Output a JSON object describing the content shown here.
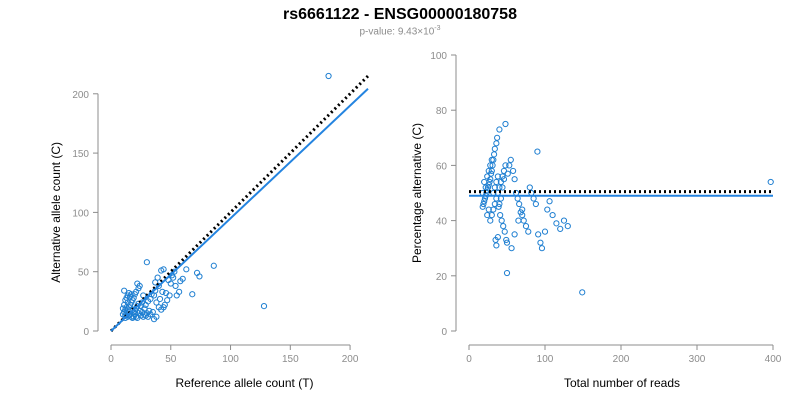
{
  "header": {
    "title": "rs6661122 - ENSG00000180758",
    "pvalue_prefix": "p-value: 9.43×10",
    "pvalue_exp": "-3"
  },
  "colors": {
    "points": "#1f7fd1",
    "fit_line": "#2484e0",
    "reference_line": "#000000",
    "axis": "#8c8c8c"
  },
  "chart_data": [
    {
      "type": "scatter",
      "xlabel": "Reference allele count (T)",
      "ylabel": "Alternative allele count (C)",
      "xlim": [
        0,
        215
      ],
      "ylim": [
        0,
        215
      ],
      "xticks": [
        0,
        50,
        100,
        150,
        200
      ],
      "yticks": [
        0,
        50,
        100,
        150,
        200
      ],
      "grid": false,
      "points": [
        [
          182,
          215
        ],
        [
          128,
          21
        ],
        [
          30,
          58
        ],
        [
          86,
          55
        ],
        [
          72,
          49
        ],
        [
          74,
          46
        ],
        [
          68,
          31
        ],
        [
          63,
          52
        ],
        [
          57,
          33
        ],
        [
          55,
          30
        ],
        [
          51,
          47
        ],
        [
          48,
          43
        ],
        [
          53,
          50
        ],
        [
          44,
          52
        ],
        [
          42,
          51
        ],
        [
          46,
          32
        ],
        [
          40,
          38
        ],
        [
          37,
          34
        ],
        [
          36,
          30
        ],
        [
          34,
          31
        ],
        [
          33,
          27
        ],
        [
          31,
          25
        ],
        [
          29,
          22
        ],
        [
          28,
          19
        ],
        [
          27,
          30
        ],
        [
          26,
          24
        ],
        [
          25,
          21
        ],
        [
          24,
          38
        ],
        [
          23,
          36
        ],
        [
          22,
          40
        ],
        [
          21,
          33
        ],
        [
          20,
          31
        ],
        [
          19,
          28
        ],
        [
          18,
          26
        ],
        [
          17,
          24
        ],
        [
          16,
          22
        ],
        [
          15,
          20
        ],
        [
          14,
          18
        ],
        [
          13,
          15
        ],
        [
          12,
          13
        ],
        [
          11,
          34
        ],
        [
          11,
          22
        ],
        [
          12,
          26
        ],
        [
          13,
          28
        ],
        [
          14,
          30
        ],
        [
          15,
          32
        ],
        [
          16,
          29
        ],
        [
          17,
          31
        ],
        [
          18,
          18
        ],
        [
          19,
          16
        ],
        [
          20,
          14
        ],
        [
          21,
          12
        ],
        [
          22,
          11
        ],
        [
          23,
          15
        ],
        [
          24,
          17
        ],
        [
          25,
          13
        ],
        [
          26,
          16
        ],
        [
          27,
          12
        ],
        [
          28,
          14
        ],
        [
          29,
          13
        ],
        [
          30,
          15
        ],
        [
          31,
          12
        ],
        [
          32,
          17
        ],
        [
          33,
          14
        ],
        [
          35,
          16
        ],
        [
          38,
          12
        ],
        [
          40,
          20
        ],
        [
          42,
          18
        ],
        [
          45,
          22
        ],
        [
          47,
          26
        ],
        [
          49,
          30
        ],
        [
          50,
          40
        ],
        [
          52,
          45
        ],
        [
          54,
          38
        ],
        [
          58,
          42
        ],
        [
          60,
          44
        ],
        [
          36,
          10
        ],
        [
          38,
          24
        ],
        [
          41,
          27
        ],
        [
          43,
          33
        ],
        [
          44,
          20
        ],
        [
          37,
          41
        ],
        [
          39,
          45
        ],
        [
          15,
          13
        ],
        [
          16,
          14
        ],
        [
          17,
          12
        ],
        [
          18,
          11
        ],
        [
          19,
          12
        ],
        [
          20,
          17
        ],
        [
          21,
          19
        ],
        [
          22,
          21
        ],
        [
          23,
          23
        ],
        [
          13,
          20
        ],
        [
          14,
          24
        ],
        [
          12,
          18
        ],
        [
          11,
          16
        ],
        [
          10,
          14
        ],
        [
          10,
          19
        ],
        [
          12,
          11
        ],
        [
          14,
          12
        ]
      ],
      "fit_line": {
        "slope": 0.95,
        "intercept": 0
      },
      "reference_line": {
        "slope": 1.0,
        "intercept": 0
      }
    },
    {
      "type": "scatter",
      "xlabel": "Total number of reads",
      "ylabel": "Percentage alternative (C)",
      "xlim": [
        0,
        400
      ],
      "ylim": [
        0,
        100
      ],
      "xticks": [
        0,
        100,
        200,
        300,
        400
      ],
      "yticks": [
        0,
        20,
        40,
        60,
        80,
        100
      ],
      "grid": false,
      "points": [
        [
          397,
          54
        ],
        [
          149,
          14
        ],
        [
          90,
          65
        ],
        [
          48,
          75
        ],
        [
          40,
          73
        ],
        [
          37,
          70
        ],
        [
          36,
          68
        ],
        [
          34,
          66
        ],
        [
          33,
          64
        ],
        [
          32,
          62
        ],
        [
          31,
          60
        ],
        [
          30,
          58
        ],
        [
          29,
          57
        ],
        [
          28,
          55
        ],
        [
          27,
          54
        ],
        [
          26,
          53
        ],
        [
          25,
          52
        ],
        [
          24,
          51
        ],
        [
          23,
          50
        ],
        [
          22,
          49
        ],
        [
          21,
          48
        ],
        [
          20,
          47
        ],
        [
          19,
          46
        ],
        [
          18,
          45
        ],
        [
          39,
          45
        ],
        [
          41,
          42
        ],
        [
          43,
          40
        ],
        [
          45,
          38
        ],
        [
          47,
          36
        ],
        [
          49,
          33
        ],
        [
          50,
          32
        ],
        [
          38,
          34
        ],
        [
          36,
          31
        ],
        [
          35,
          33
        ],
        [
          42,
          48
        ],
        [
          44,
          52
        ],
        [
          46,
          55
        ],
        [
          51,
          57
        ],
        [
          53,
          60
        ],
        [
          55,
          62
        ],
        [
          58,
          58
        ],
        [
          60,
          55
        ],
        [
          62,
          50
        ],
        [
          64,
          48
        ],
        [
          66,
          46
        ],
        [
          68,
          43
        ],
        [
          70,
          42
        ],
        [
          72,
          40
        ],
        [
          75,
          38
        ],
        [
          78,
          36
        ],
        [
          80,
          52
        ],
        [
          82,
          50
        ],
        [
          85,
          48
        ],
        [
          88,
          46
        ],
        [
          91,
          35
        ],
        [
          94,
          32
        ],
        [
          96,
          30
        ],
        [
          100,
          36
        ],
        [
          103,
          44
        ],
        [
          106,
          47
        ],
        [
          110,
          42
        ],
        [
          115,
          39
        ],
        [
          120,
          37
        ],
        [
          125,
          40
        ],
        [
          130,
          38
        ],
        [
          50,
          21
        ],
        [
          56,
          30
        ],
        [
          60,
          35
        ],
        [
          65,
          40
        ],
        [
          70,
          44
        ],
        [
          28,
          40
        ],
        [
          30,
          42
        ],
        [
          32,
          44
        ],
        [
          34,
          46
        ],
        [
          36,
          48
        ],
        [
          38,
          50
        ],
        [
          40,
          52
        ],
        [
          42,
          54
        ],
        [
          44,
          56
        ],
        [
          46,
          58
        ],
        [
          48,
          60
        ],
        [
          24,
          56
        ],
        [
          26,
          58
        ],
        [
          28,
          60
        ],
        [
          30,
          62
        ],
        [
          32,
          50
        ],
        [
          34,
          52
        ],
        [
          36,
          54
        ],
        [
          38,
          56
        ],
        [
          40,
          46
        ],
        [
          26,
          44
        ],
        [
          24,
          42
        ],
        [
          22,
          52
        ],
        [
          20,
          54
        ],
        [
          18,
          50
        ]
      ],
      "fit_line": {
        "y": 49
      },
      "reference_line": {
        "y": 50.5
      }
    }
  ]
}
